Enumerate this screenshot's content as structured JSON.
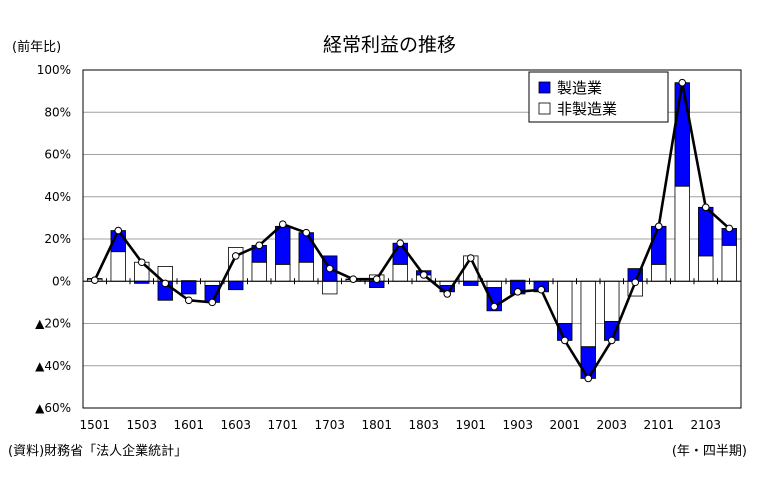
{
  "header": {
    "unit": "(前年比)",
    "title": "経常利益の推移"
  },
  "footer": {
    "source": "(資料)財務省「法人企業統計」",
    "period": "(年・四半期)"
  },
  "colors": {
    "manufacturing": "#0000ff",
    "non_manufacturing": "#ffffff",
    "total_line": "#000000",
    "grid": "#a0a0a0"
  },
  "chart_data": {
    "type": "bar",
    "stacked": true,
    "title": "経常利益の推移",
    "ylabel": "(前年比)",
    "xlabel": "(年・四半期)",
    "ylim": [
      -60,
      100
    ],
    "yticks": [
      100,
      80,
      60,
      40,
      20,
      0,
      -20,
      -40,
      -60
    ],
    "ytick_labels": [
      "100%",
      "80%",
      "60%",
      "40%",
      "20%",
      "0%",
      "▲20%",
      "▲40%",
      "▲60%"
    ],
    "grid": true,
    "legend_position": "top-right",
    "categories": [
      "1501",
      "1502",
      "1503",
      "1504",
      "1601",
      "1602",
      "1603",
      "1604",
      "1701",
      "1702",
      "1703",
      "1704",
      "1801",
      "1802",
      "1803",
      "1804",
      "1901",
      "1902",
      "1903",
      "1904",
      "2001",
      "2002",
      "2003",
      "2004",
      "2101",
      "2102",
      "2103",
      "2104"
    ],
    "xtick_labels": [
      "1501",
      "1503",
      "1601",
      "1603",
      "1701",
      "1703",
      "1801",
      "1803",
      "1901",
      "1903",
      "2001",
      "2003",
      "2101",
      "2103"
    ],
    "series": [
      {
        "name": "製造業",
        "values": [
          0.3,
          10,
          -1,
          -9,
          -6,
          -8,
          -4,
          8,
          18,
          14,
          12,
          0,
          -3,
          10,
          2,
          -3,
          -2,
          -11,
          -6,
          -5,
          -8,
          -15,
          -9,
          6,
          18,
          49,
          23,
          8
        ]
      },
      {
        "name": "非製造業",
        "values": [
          1,
          14,
          9,
          7,
          0.3,
          -2,
          16,
          9,
          8,
          9,
          -6,
          1,
          3,
          8,
          3,
          -2,
          12,
          -3,
          0.5,
          0,
          -20,
          -31,
          -19,
          -7,
          8,
          45,
          12,
          17
        ]
      }
    ],
    "total": [
      0.5,
      24,
      9,
      -1,
      -9,
      -10,
      12,
      17,
      27,
      23,
      6,
      1,
      1,
      18,
      3,
      -6,
      11,
      -12,
      -5,
      -4,
      -28,
      -46,
      -28,
      -0.5,
      26,
      94,
      35,
      25
    ]
  }
}
